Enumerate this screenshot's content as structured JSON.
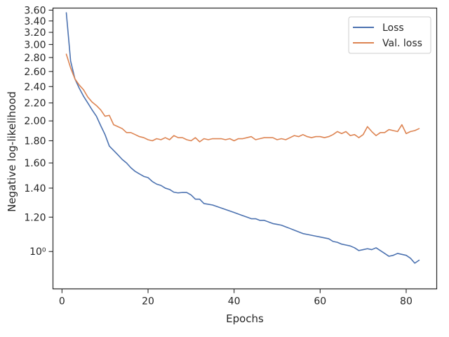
{
  "chart_data": {
    "type": "line",
    "title": "",
    "xlabel": "Epochs",
    "ylabel": "Negative log-likelihood",
    "yscale": "log",
    "xlim": [
      -2.1,
      87.1
    ],
    "ylim": [
      0.82,
      3.64
    ],
    "grid": false,
    "legend_position": "top-right",
    "x_ticks": [
      {
        "value": 0,
        "label": "0"
      },
      {
        "value": 20,
        "label": "20"
      },
      {
        "value": 40,
        "label": "40"
      },
      {
        "value": 60,
        "label": "60"
      },
      {
        "value": 80,
        "label": "80"
      }
    ],
    "y_ticks": [
      {
        "value": 1.0,
        "label": "10⁰"
      },
      {
        "value": 1.2,
        "label": "1.20"
      },
      {
        "value": 1.4,
        "label": "1.40"
      },
      {
        "value": 1.6,
        "label": "1.60"
      },
      {
        "value": 1.8,
        "label": "1.80"
      },
      {
        "value": 2.0,
        "label": "2.00"
      },
      {
        "value": 2.2,
        "label": "2.20"
      },
      {
        "value": 2.4,
        "label": "2.40"
      },
      {
        "value": 2.6,
        "label": "2.60"
      },
      {
        "value": 2.8,
        "label": "2.80"
      },
      {
        "value": 3.0,
        "label": "3.00"
      },
      {
        "value": 3.2,
        "label": "3.20"
      },
      {
        "value": 3.4,
        "label": "3.40"
      },
      {
        "value": 3.6,
        "label": "3.60"
      }
    ],
    "series": [
      {
        "name": "Loss",
        "color": "#4c72b0",
        "x": [
          1,
          2,
          3,
          4,
          5,
          6,
          7,
          8,
          9,
          10,
          11,
          12,
          13,
          14,
          15,
          16,
          17,
          18,
          19,
          20,
          21,
          22,
          23,
          24,
          25,
          26,
          27,
          28,
          29,
          30,
          31,
          32,
          33,
          34,
          35,
          36,
          37,
          38,
          39,
          40,
          41,
          42,
          43,
          44,
          45,
          46,
          47,
          48,
          49,
          50,
          51,
          52,
          53,
          54,
          55,
          56,
          57,
          58,
          59,
          60,
          61,
          62,
          63,
          64,
          65,
          66,
          67,
          68,
          69,
          70,
          71,
          72,
          73,
          74,
          75,
          76,
          77,
          78,
          79,
          80,
          81,
          82,
          83
        ],
        "y": [
          3.55,
          2.75,
          2.5,
          2.38,
          2.28,
          2.2,
          2.12,
          2.05,
          1.95,
          1.86,
          1.75,
          1.71,
          1.67,
          1.63,
          1.6,
          1.56,
          1.53,
          1.51,
          1.49,
          1.48,
          1.45,
          1.43,
          1.42,
          1.4,
          1.39,
          1.37,
          1.365,
          1.368,
          1.368,
          1.35,
          1.32,
          1.32,
          1.29,
          1.285,
          1.28,
          1.27,
          1.26,
          1.25,
          1.24,
          1.23,
          1.22,
          1.21,
          1.2,
          1.19,
          1.19,
          1.18,
          1.18,
          1.17,
          1.16,
          1.155,
          1.15,
          1.14,
          1.13,
          1.12,
          1.11,
          1.1,
          1.095,
          1.09,
          1.085,
          1.08,
          1.075,
          1.07,
          1.055,
          1.05,
          1.04,
          1.035,
          1.03,
          1.02,
          1.005,
          1.01,
          1.015,
          1.01,
          1.02,
          1.005,
          0.99,
          0.975,
          0.98,
          0.99,
          0.985,
          0.98,
          0.965,
          0.94,
          0.955
        ]
      },
      {
        "name": "Val. loss",
        "color": "#dd8452",
        "x": [
          1,
          2,
          3,
          4,
          5,
          6,
          7,
          8,
          9,
          10,
          11,
          12,
          13,
          14,
          15,
          16,
          17,
          18,
          19,
          20,
          21,
          22,
          23,
          24,
          25,
          26,
          27,
          28,
          29,
          30,
          31,
          32,
          33,
          34,
          35,
          36,
          37,
          38,
          39,
          40,
          41,
          42,
          43,
          44,
          45,
          46,
          47,
          48,
          49,
          50,
          51,
          52,
          53,
          54,
          55,
          56,
          57,
          58,
          59,
          60,
          61,
          62,
          63,
          64,
          65,
          66,
          67,
          68,
          69,
          70,
          71,
          72,
          73,
          74,
          75,
          76,
          77,
          78,
          79,
          80,
          81,
          82,
          83
        ],
        "y": [
          2.85,
          2.65,
          2.5,
          2.42,
          2.36,
          2.27,
          2.21,
          2.17,
          2.12,
          2.05,
          2.06,
          1.96,
          1.94,
          1.92,
          1.88,
          1.88,
          1.86,
          1.84,
          1.83,
          1.81,
          1.8,
          1.82,
          1.81,
          1.83,
          1.81,
          1.85,
          1.83,
          1.83,
          1.81,
          1.8,
          1.83,
          1.79,
          1.82,
          1.81,
          1.82,
          1.82,
          1.82,
          1.81,
          1.82,
          1.8,
          1.82,
          1.82,
          1.83,
          1.84,
          1.81,
          1.82,
          1.83,
          1.83,
          1.83,
          1.81,
          1.82,
          1.81,
          1.83,
          1.85,
          1.84,
          1.86,
          1.84,
          1.83,
          1.84,
          1.84,
          1.83,
          1.84,
          1.86,
          1.89,
          1.87,
          1.89,
          1.85,
          1.86,
          1.83,
          1.86,
          1.94,
          1.89,
          1.85,
          1.88,
          1.88,
          1.91,
          1.9,
          1.89,
          1.96,
          1.87,
          1.89,
          1.9,
          1.92
        ]
      }
    ]
  }
}
